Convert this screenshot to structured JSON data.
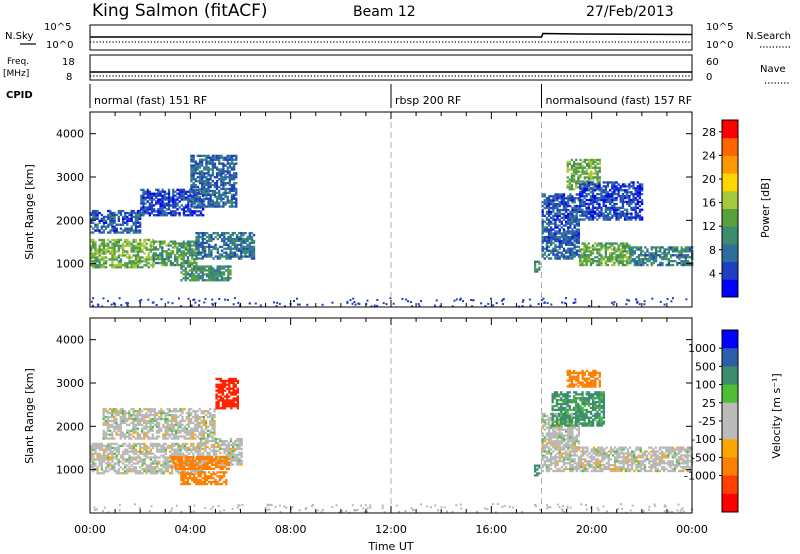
{
  "header": {
    "station": "King Salmon (fitACF)",
    "beam": "Beam 12",
    "date": "27/Feb/2013"
  },
  "side_labels": {
    "nsky": "N.Sky",
    "nsearch": "N.Search",
    "freq": "Freq.",
    "freq_unit": "[MHz]",
    "nave": "Nave",
    "cpid": "CPID"
  },
  "colors": {
    "power_scale": [
      "#0000ff",
      "#1f3fbf",
      "#2e6e9e",
      "#3c8c6e",
      "#5aa03c",
      "#a6c83c",
      "#ffd700",
      "#ff9900",
      "#ff6600",
      "#ff0000"
    ],
    "velocity_scale": [
      "#0000ff",
      "#2e5eaa",
      "#3c8c6e",
      "#4fbf3a",
      "#bbbbbb",
      "#bbbbbb",
      "#ffa500",
      "#ff7f00",
      "#ff4000",
      "#ff0000"
    ],
    "ground_scatter": "#b8b8b8",
    "divider": "#b0b0b0"
  },
  "chart_data": [
    {
      "type": "line",
      "name": "noise-panel",
      "left_ticks": [
        "10^5",
        "10^0"
      ],
      "right_ticks": [
        "10^5",
        "10^0"
      ],
      "series": [
        {
          "name": "N.Sky",
          "style": "solid",
          "x": [
            0,
            18.0,
            18.05,
            19.5,
            24
          ],
          "y": [
            2.6,
            2.6,
            3.3,
            3.2,
            3.1
          ]
        },
        {
          "name": "N.Search",
          "style": "dotted",
          "x": [
            0,
            24
          ],
          "y": [
            1.6,
            1.6
          ]
        }
      ]
    },
    {
      "type": "line",
      "name": "frequency-nave-panel",
      "left_ticks": [
        "18",
        "8"
      ],
      "right_ticks": [
        "60",
        "0"
      ],
      "series": [
        {
          "name": "Freq.",
          "style": "solid",
          "x": [
            0,
            24
          ],
          "y": [
            11.2,
            11.2
          ]
        },
        {
          "name": "Nave",
          "style": "dotted",
          "x": [
            0,
            24
          ],
          "y": [
            9.6,
            9.6
          ]
        }
      ]
    },
    {
      "type": "table",
      "name": "cpid",
      "modes": [
        {
          "label": "normal (fast) 151 RF",
          "start": 0,
          "end": 12
        },
        {
          "label": "rbsp 200 RF",
          "start": 12,
          "end": 18
        },
        {
          "label": "normalsound (fast) 157 RF",
          "start": 18,
          "end": 24
        }
      ]
    },
    {
      "type": "heatmap",
      "name": "power",
      "ylabel": "Slant Range [km]",
      "xlabel": "Time UT",
      "xlim": [
        0,
        24
      ],
      "ylim": [
        0,
        4500
      ],
      "yticks": [
        1000,
        2000,
        3000,
        4000
      ],
      "xticks": [
        "00:00",
        "04:00",
        "08:00",
        "12:00",
        "16:00",
        "20:00",
        "00:00"
      ],
      "colorbar": {
        "label": "Power [dB]",
        "ticks": [
          4,
          8,
          12,
          16,
          20,
          24,
          28
        ],
        "range": [
          0,
          30
        ]
      },
      "regions": [
        {
          "t0": 0.0,
          "t1": 2.5,
          "r0": 900,
          "r1": 1550,
          "value": 14
        },
        {
          "t0": 2.5,
          "t1": 4.2,
          "r0": 950,
          "r1": 1500,
          "value": 12
        },
        {
          "t0": 4.2,
          "t1": 6.5,
          "r0": 1100,
          "r1": 1700,
          "value": 8
        },
        {
          "t0": 0.0,
          "t1": 2.0,
          "r0": 1700,
          "r1": 2200,
          "value": 6
        },
        {
          "t0": 2.0,
          "t1": 4.5,
          "r0": 2100,
          "r1": 2700,
          "value": 5
        },
        {
          "t0": 4.0,
          "t1": 5.8,
          "r0": 2300,
          "r1": 3500,
          "value": 7
        },
        {
          "t0": 3.6,
          "t1": 5.6,
          "r0": 600,
          "r1": 950,
          "value": 11
        },
        {
          "t0": 17.7,
          "t1": 17.95,
          "r0": 800,
          "r1": 1050,
          "value": 10
        },
        {
          "t0": 18.0,
          "t1": 19.5,
          "r0": 1100,
          "r1": 1600,
          "value": 7
        },
        {
          "t0": 19.5,
          "t1": 21.5,
          "r0": 950,
          "r1": 1450,
          "value": 13
        },
        {
          "t0": 21.5,
          "t1": 24.0,
          "r0": 950,
          "r1": 1400,
          "value": 9
        },
        {
          "t0": 18.0,
          "t1": 19.5,
          "r0": 1500,
          "r1": 2600,
          "value": 6
        },
        {
          "t0": 19.0,
          "t1": 20.3,
          "r0": 2700,
          "r1": 3400,
          "value": 14
        },
        {
          "t0": 19.5,
          "t1": 22.0,
          "r0": 2000,
          "r1": 2900,
          "value": 5
        }
      ]
    },
    {
      "type": "heatmap",
      "name": "velocity",
      "ylabel": "Slant Range [km]",
      "xlabel": "Time UT",
      "xlim": [
        0,
        24
      ],
      "ylim": [
        0,
        4500
      ],
      "yticks": [
        1000,
        2000,
        3000,
        4000
      ],
      "xticks": [
        "00:00",
        "04:00",
        "08:00",
        "12:00",
        "16:00",
        "20:00",
        "00:00"
      ],
      "colorbar": {
        "label": "Velocity [m s⁻¹]",
        "ticks": [
          "1000",
          "500",
          "100",
          "25",
          "-25",
          "-100",
          "-500",
          "-1000"
        ]
      },
      "regions": [
        {
          "t0": 0.0,
          "t1": 4.5,
          "r0": 900,
          "r1": 1600,
          "value": 0
        },
        {
          "t0": 0.5,
          "t1": 5.0,
          "r0": 1700,
          "r1": 2400,
          "value": 0
        },
        {
          "t0": 4.3,
          "t1": 6.0,
          "r0": 1100,
          "r1": 1700,
          "value": 0
        },
        {
          "t0": 3.2,
          "t1": 5.5,
          "r0": 1000,
          "r1": 1300,
          "value": -300
        },
        {
          "t0": 3.6,
          "t1": 5.4,
          "r0": 650,
          "r1": 950,
          "value": -200
        },
        {
          "t0": 5.0,
          "t1": 5.9,
          "r0": 2400,
          "r1": 3100,
          "value": -600
        },
        {
          "t0": 17.7,
          "t1": 17.95,
          "r0": 850,
          "r1": 1100,
          "value": 150
        },
        {
          "t0": 18.0,
          "t1": 24.0,
          "r0": 950,
          "r1": 1500,
          "value": 0
        },
        {
          "t0": 18.0,
          "t1": 19.5,
          "r0": 1500,
          "r1": 2300,
          "value": 0
        },
        {
          "t0": 18.4,
          "t1": 20.5,
          "r0": 2000,
          "r1": 2800,
          "value": 80
        },
        {
          "t0": 19.0,
          "t1": 20.3,
          "r0": 2900,
          "r1": 3300,
          "value": -400
        }
      ]
    }
  ]
}
